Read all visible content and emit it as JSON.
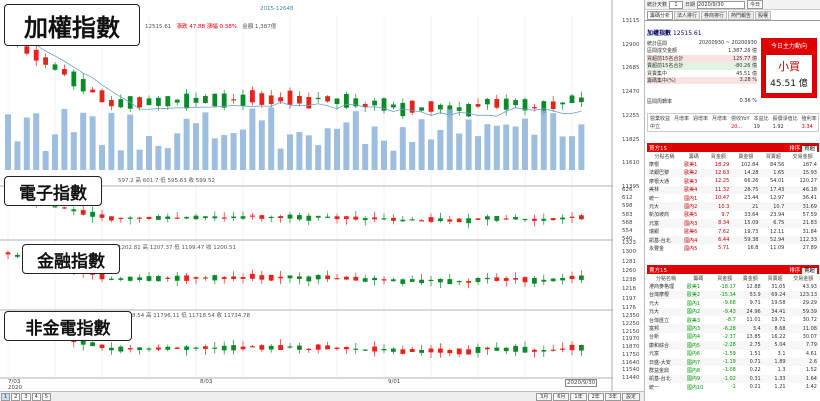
{
  "top_info": {
    "text": "2015-12648",
    "value": "12515.61",
    "change_label": "漲跌",
    "change": "47.88",
    "pct_label": "漲幅",
    "pct": "0.38%",
    "amount_label": "金額",
    "amount": "1,387億"
  },
  "labels": {
    "main": "加權指數",
    "elec": "電子指數",
    "fin": "金融指數",
    "nonfe": "非金電指數"
  },
  "elec_info": "597.2 高 601.7 低 595.63 收 599.52",
  "fin_info": "1202.81 高 1207.37 低 1199.47 收 1200.51",
  "nonfe_info": "11718.54 高 11796.11 低 11718.54 收 11734.78",
  "axis_main": [
    "13115",
    "12900",
    "12685",
    "12470",
    "12255",
    "11825",
    "11610",
    "11395"
  ],
  "axis_elec": [
    "626",
    "612",
    "598",
    "583",
    "568",
    "554",
    "540"
  ],
  "axis_fin": [
    "1323",
    "1300",
    "1281",
    "1260",
    "1238",
    "1218",
    "1197",
    "1176"
  ],
  "axis_nonfe": [
    "12350",
    "12250",
    "12150",
    "11970",
    "11870",
    "11750",
    "11640",
    "11540",
    "11440"
  ],
  "dates": [
    "7/03",
    "2020",
    "8/03",
    "9/01",
    "2020/9/30"
  ],
  "bottom": {
    "tabs": [
      "1",
      "2",
      "3",
      "4",
      "5"
    ],
    "right_btns": [
      "3月",
      "6月",
      "1年",
      "2年",
      "3年",
      "設定"
    ]
  },
  "panel": {
    "days_label": "統計天數",
    "days_value": "1",
    "date_label": "日期",
    "date_value": "2020/9/30",
    "today_btn": "今日",
    "tabs": [
      "籌碼分析",
      "法人排行",
      "券商排行",
      "熱門報告",
      "股權"
    ],
    "title": "加權指數",
    "index_value": "12515.61",
    "rows": [
      {
        "k": "統計區間",
        "v": "20200930 ~ 20200930"
      },
      {
        "k": "區間成交金額",
        "v": "1,387.26 億"
      },
      {
        "k": "買超前15名合計",
        "v": "125.77 億"
      },
      {
        "k": "賣超前15名合計",
        "v": "-80.26 億"
      },
      {
        "k": "買賣集中",
        "v": "45.51 億"
      },
      {
        "k": "籌碼集中(%)",
        "v": "3.28 %"
      },
      {
        "k": "區間周轉率",
        "v": "0.36 %"
      }
    ],
    "main_force_title": "今日主力動向",
    "main_force_label": "小買",
    "main_force_value": "45.51 億",
    "stat_headers": [
      "營業收益",
      "月增率",
      "週增率",
      "月增率",
      "營收YoY",
      "本益比",
      "股價淨值比",
      "殖利率"
    ],
    "stat_row_label": "中立",
    "stat_values": [
      "",
      "",
      "",
      "",
      "20...",
      "19",
      "1.92",
      "3.34"
    ],
    "buy_title": "買方15",
    "buy_sort_label": "排序",
    "buy_sort_value": "買超",
    "sell_title": "賣方15",
    "sell_sort_label": "排序",
    "sell_sort_value": "賣超",
    "col_headers": [
      "分點名稱",
      "籌碼",
      "買金額",
      "賣金額",
      "買賣超",
      "交易金額"
    ],
    "buy_rows": [
      [
        "摩根",
        "歐美1",
        "18.29",
        "102.84",
        "84.56",
        "187.4"
      ],
      [
        "法銀巴黎",
        "歐美2",
        "12.63",
        "14.28",
        "1.65",
        "15.93"
      ],
      [
        "摩根大通",
        "歐美3",
        "12.25",
        "66.26",
        "54.01",
        "120.27"
      ],
      [
        "美林",
        "歐美4",
        "11.32",
        "28.75",
        "17.43",
        "46.18"
      ],
      [
        "統一",
        "國內1",
        "10.47",
        "23.44",
        "12.97",
        "36.41"
      ],
      [
        "元大",
        "國內2",
        "10.3",
        "21",
        "10.7",
        "31.69"
      ],
      [
        "新加坡商",
        "歐美5",
        "9.7",
        "33.64",
        "23.94",
        "57.59"
      ],
      [
        "元富",
        "國內3",
        "8.34",
        "15.09",
        "6.75",
        "21.83"
      ],
      [
        "瑞銀",
        "歐美6",
        "7.62",
        "19.73",
        "12.11",
        "31.84"
      ],
      [
        "凱基-台北",
        "國內4",
        "6.44",
        "59.38",
        "52.94",
        "112.33"
      ],
      [
        "永豐金",
        "國內5",
        "5.71",
        "16.8",
        "11.09",
        "27.89"
      ]
    ],
    "sell_rows": [
      [
        "港商麥格理",
        "歐美1",
        "-18.17",
        "12.88",
        "31.05",
        "43.93"
      ],
      [
        "台灣摩根",
        "歐美2",
        "-15.34",
        "53.9",
        "69.24",
        "123.13"
      ],
      [
        "元大",
        "國內1",
        "-9.68",
        "9.71",
        "19.58",
        "29.29"
      ],
      [
        "元大",
        "國內2",
        "-9.43",
        "24.96",
        "34.41",
        "59.39"
      ],
      [
        "台灣匯立",
        "歐美3",
        "-8.7",
        "11.01",
        "19.71",
        "30.72"
      ],
      [
        "富邦",
        "國內3",
        "-6.28",
        "3.4",
        "8.68",
        "11.08"
      ],
      [
        "台新",
        "國內4",
        "-2.37",
        "13.85",
        "16.22",
        "30.07"
      ],
      [
        "康和綜合",
        "國內5",
        "-2.28",
        "2.75",
        "5.04",
        "7.79"
      ],
      [
        "元富",
        "國內6",
        "-1.59",
        "1.51",
        "3.1",
        "4.61"
      ],
      [
        "日盛-大安",
        "國內7",
        "-1.19",
        "0.71",
        "1.89",
        "2.6"
      ],
      [
        "群益金鼎",
        "國內8",
        "-1.08",
        "0.22",
        "1.3",
        "1.52"
      ],
      [
        "凱基-台北",
        "國內9",
        "-1.02",
        "0.31",
        "1.33",
        "1.64"
      ],
      [
        "統一",
        "國內10",
        "-1",
        "0.21",
        "1.21",
        "1.42"
      ]
    ]
  },
  "colors": {
    "up": "#e8231a",
    "down": "#0b8a2a",
    "vol": "#8db3d9",
    "ma": "#6aa0c8",
    "panel_red": "#e00000"
  }
}
